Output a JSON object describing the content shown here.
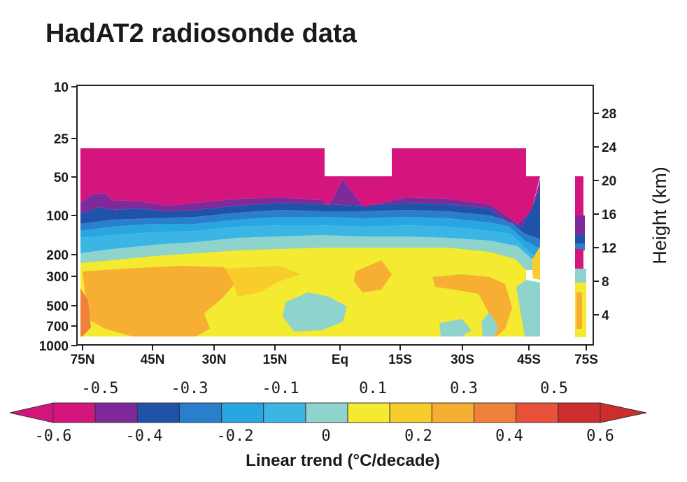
{
  "chart_data": {
    "type": "heatmap",
    "title": "HadAT2 radiosonde data",
    "xlabel": "",
    "ylabel_left": "",
    "ylabel_right": "Height (km)",
    "x_ticks": [
      "75N",
      "45N",
      "30N",
      "15N",
      "Eq",
      "15S",
      "30S",
      "45S",
      "75S"
    ],
    "pressure_ticks": [
      "10",
      "25",
      "50",
      "100",
      "200",
      "300",
      "500",
      "700",
      "1000"
    ],
    "pressure_values": [
      10,
      25,
      50,
      100,
      200,
      300,
      500,
      700,
      1000
    ],
    "height_ticks": [
      "28",
      "24",
      "20",
      "16",
      "12",
      "8",
      "4"
    ],
    "height_values": [
      28,
      24,
      20,
      16,
      12,
      8,
      4
    ],
    "colorbar": {
      "label": "Linear trend (°C/decade)",
      "upper_ticks": [
        "-0.5",
        "-0.3",
        "-0.1",
        "0.1",
        "0.3",
        "0.5"
      ],
      "lower_ticks": [
        "-0.6",
        "-0.4",
        "-0.2",
        "0",
        "0.2",
        "0.4",
        "0.6"
      ],
      "levels": [
        -0.6,
        -0.5,
        -0.4,
        -0.3,
        -0.2,
        -0.1,
        0,
        0.1,
        0.2,
        0.3,
        0.4,
        0.5,
        0.6
      ],
      "colors": [
        "#d4157e",
        "#7e2a9a",
        "#1f52a8",
        "#2a7fcd",
        "#27a6df",
        "#3bb6e4",
        "#8ed3cc",
        "#f4ea2f",
        "#f8cc2a",
        "#f6ae33",
        "#f0813b",
        "#e8503a",
        "#cc2d2d"
      ]
    },
    "trend_profile_pressure_hPa": [
      30,
      50,
      100,
      150,
      200,
      300,
      500,
      700,
      1000
    ],
    "trend_profile_typical_value": [
      -0.6,
      -0.6,
      -0.4,
      -0.2,
      0.0,
      0.2,
      0.1,
      0.1,
      0.1
    ]
  }
}
